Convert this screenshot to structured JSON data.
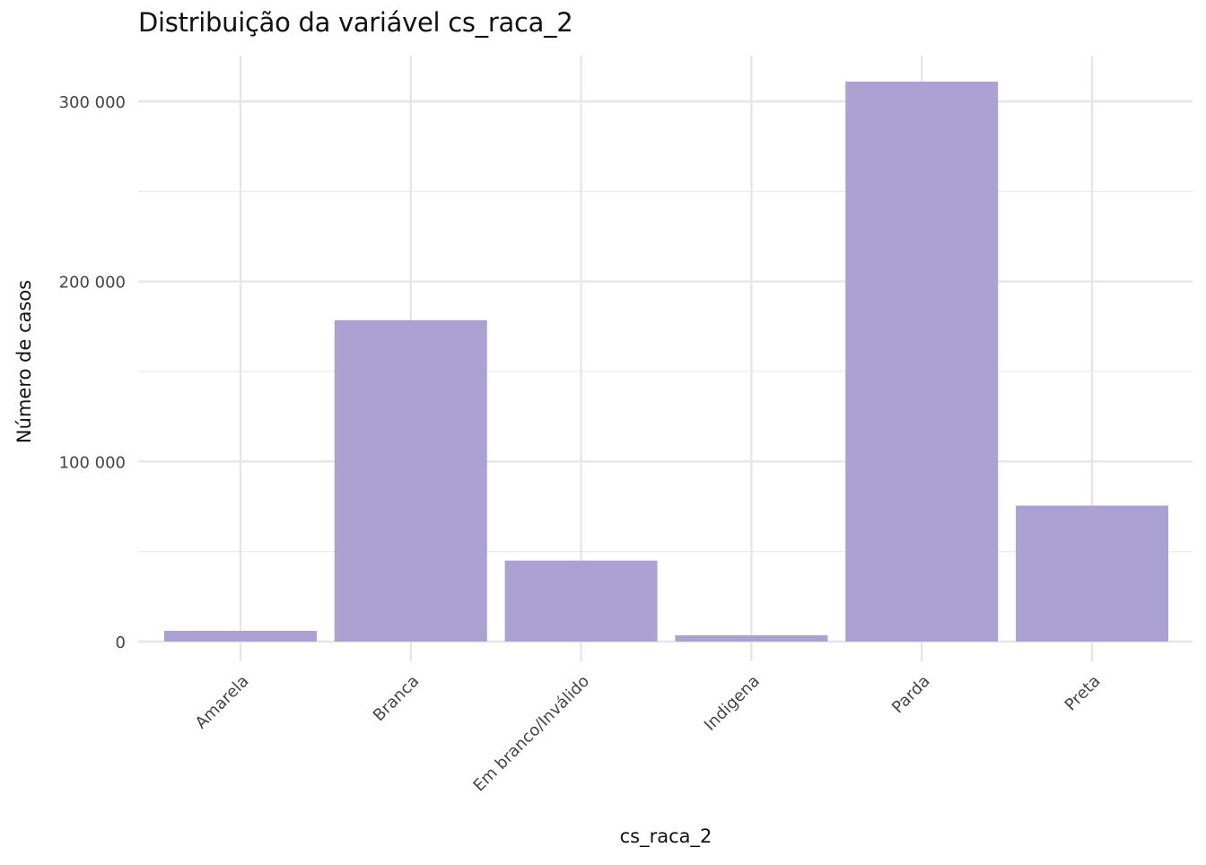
{
  "chart_data": {
    "type": "bar",
    "title": "Distribuição da variável  cs_raca_2",
    "xlabel": "cs_raca_2",
    "ylabel": "Número de casos",
    "categories": [
      "Amarela",
      "Branca",
      "Em branco/Inválido",
      "Indigena",
      "Parda",
      "Preta"
    ],
    "values": [
      6000,
      178500,
      45000,
      3500,
      311000,
      75500
    ],
    "ylim": [
      0,
      325000
    ],
    "yticks": [
      0,
      100000,
      200000,
      300000
    ],
    "ytick_labels": [
      "0",
      "100 000",
      "200 000",
      "300 000"
    ],
    "bar_color": "#aba2d3",
    "grid": true,
    "legend": "none"
  }
}
